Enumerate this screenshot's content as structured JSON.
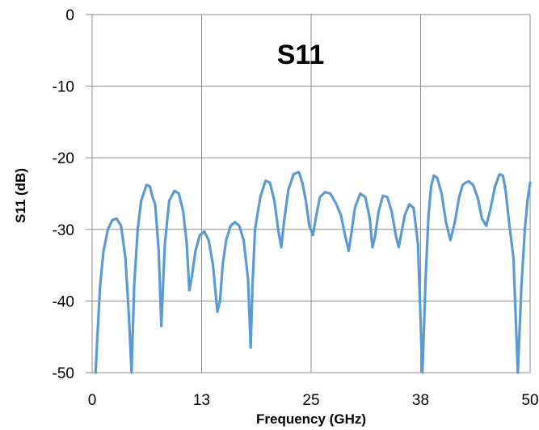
{
  "chart_data": {
    "type": "line",
    "title": "S11",
    "xlabel": "Frequency  (GHz)",
    "ylabel": "S11 (dB)",
    "xlim": [
      0,
      50
    ],
    "ylim": [
      -50,
      0
    ],
    "x_ticks": [
      0,
      12.5,
      25,
      37.5,
      50
    ],
    "x_tick_labels": [
      "0",
      "13",
      "25",
      "38",
      "50"
    ],
    "y_ticks": [
      0,
      -10,
      -20,
      -30,
      -40,
      -50
    ],
    "y_tick_labels": [
      "0",
      "-10",
      "-20",
      "-30",
      "-40",
      "-50"
    ],
    "grid": true,
    "legend": "none",
    "series": [
      {
        "color": "#5b9bd5",
        "x": [
          0.4,
          0.6,
          0.9,
          1.3,
          1.8,
          2.3,
          2.8,
          3.3,
          3.8,
          4.2,
          4.5,
          4.8,
          5.2,
          5.6,
          6.2,
          6.6,
          6.9,
          7.2,
          7.6,
          7.9,
          8.3,
          8.8,
          9.4,
          9.9,
          10.4,
          10.8,
          11.1,
          11.4,
          11.8,
          12.3,
          12.8,
          13.3,
          13.8,
          14.3,
          14.6,
          14.9,
          15.3,
          15.8,
          16.3,
          16.8,
          17.3,
          17.8,
          18.1,
          18.3,
          18.6,
          19.2,
          19.8,
          20.3,
          20.8,
          21.3,
          21.6,
          21.9,
          22.4,
          23.0,
          23.6,
          24.0,
          24.4,
          24.8,
          25.2,
          25.6,
          26.0,
          26.6,
          27.2,
          27.8,
          28.4,
          28.9,
          29.3,
          29.6,
          30.0,
          30.6,
          31.2,
          31.7,
          32.0,
          32.3,
          32.7,
          33.2,
          33.7,
          34.2,
          34.7,
          35.0,
          35.3,
          35.7,
          36.2,
          36.7,
          37.2,
          37.7,
          38.1,
          38.4,
          38.7,
          39.0,
          39.4,
          39.9,
          40.4,
          40.9,
          41.4,
          41.9,
          42.3,
          42.6,
          43.0,
          43.5,
          44.0,
          44.5,
          45.0,
          45.5,
          46.0,
          46.5,
          46.9,
          47.2,
          47.6,
          48.1,
          48.6,
          49.0,
          49.4,
          49.7,
          50.0
        ],
        "y": [
          -50.0,
          -45.0,
          -38.0,
          -33.0,
          -30.0,
          -28.7,
          -28.5,
          -29.5,
          -34.0,
          -42.0,
          -50.0,
          -38.0,
          -30.0,
          -26.0,
          -23.8,
          -24.0,
          -25.5,
          -26.5,
          -33.0,
          -43.5,
          -32.0,
          -26.0,
          -24.6,
          -25.0,
          -27.5,
          -32.0,
          -38.5,
          -36.5,
          -33.0,
          -30.8,
          -30.3,
          -31.5,
          -35.0,
          -41.5,
          -40.0,
          -35.0,
          -31.5,
          -29.5,
          -29.0,
          -29.5,
          -31.5,
          -37.0,
          -46.5,
          -38.0,
          -30.0,
          -25.5,
          -23.2,
          -23.5,
          -26.0,
          -30.5,
          -32.5,
          -29.0,
          -24.5,
          -22.3,
          -22.0,
          -23.5,
          -26.0,
          -29.5,
          -30.8,
          -28.0,
          -25.5,
          -24.8,
          -25.0,
          -26.3,
          -28.0,
          -31.0,
          -33.0,
          -30.5,
          -27.0,
          -25.0,
          -25.5,
          -28.5,
          -32.5,
          -31.0,
          -27.5,
          -25.3,
          -25.5,
          -27.5,
          -31.0,
          -32.5,
          -30.5,
          -28.0,
          -26.5,
          -27.0,
          -32.0,
          -50.0,
          -36.0,
          -28.0,
          -24.0,
          -22.5,
          -22.8,
          -25.0,
          -29.0,
          -31.5,
          -29.0,
          -25.5,
          -23.8,
          -23.5,
          -23.3,
          -23.8,
          -25.5,
          -28.5,
          -29.5,
          -27.0,
          -24.0,
          -22.3,
          -22.5,
          -24.5,
          -29.0,
          -34.0,
          -50.0,
          -38.0,
          -30.0,
          -26.0,
          -23.5
        ]
      }
    ]
  }
}
